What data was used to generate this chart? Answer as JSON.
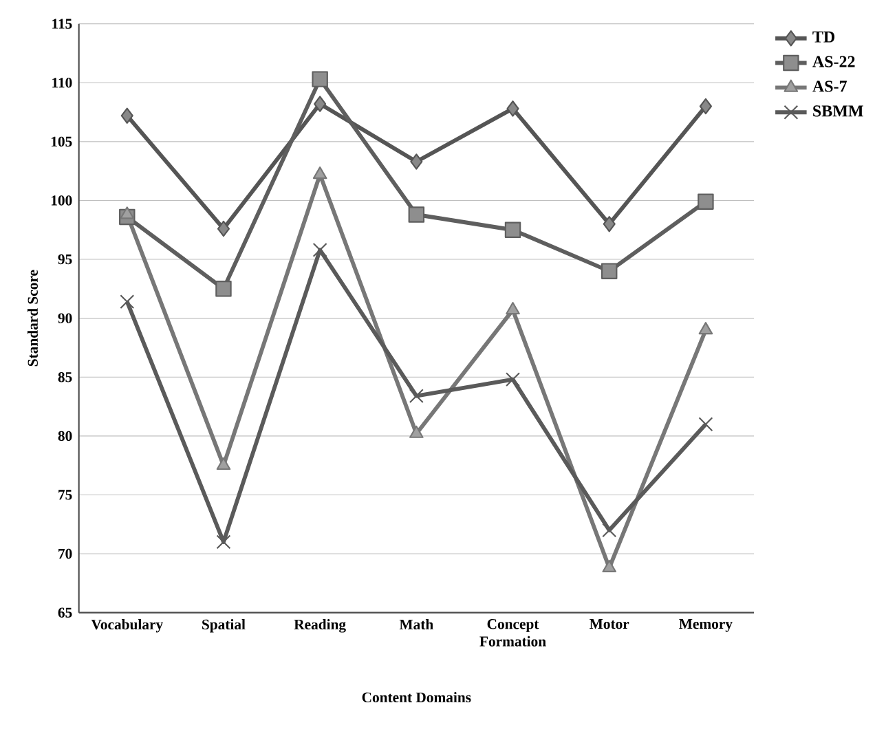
{
  "chart_data": {
    "type": "line",
    "xlabel": "Content Domains",
    "ylabel": "Standard Score",
    "categories": [
      "Vocabulary",
      "Spatial",
      "Reading",
      "Math",
      "Concept Formation",
      "Motor",
      "Memory"
    ],
    "series": [
      {
        "name": "TD",
        "color": "#555555",
        "marker": "diamond",
        "values": [
          107.2,
          97.6,
          108.2,
          103.3,
          107.8,
          98.0,
          108.0
        ]
      },
      {
        "name": "AS-22",
        "color": "#5e5e5e",
        "marker": "square",
        "values": [
          98.6,
          92.5,
          110.3,
          98.8,
          97.5,
          94.0,
          99.9
        ]
      },
      {
        "name": "AS-7",
        "color": "#777777",
        "marker": "triangle",
        "values": [
          98.8,
          77.5,
          102.2,
          80.2,
          90.7,
          68.8,
          89.0
        ]
      },
      {
        "name": "SBMM",
        "color": "#5a5a5a",
        "marker": "cross",
        "values": [
          91.4,
          71.0,
          95.8,
          83.4,
          84.8,
          72.0,
          81.0
        ]
      }
    ],
    "ylim": [
      65,
      115
    ],
    "yticks": [
      65,
      70,
      75,
      80,
      85,
      90,
      95,
      100,
      105,
      110,
      115
    ],
    "grid": "y",
    "legend": "top right",
    "line_style": "solid"
  }
}
